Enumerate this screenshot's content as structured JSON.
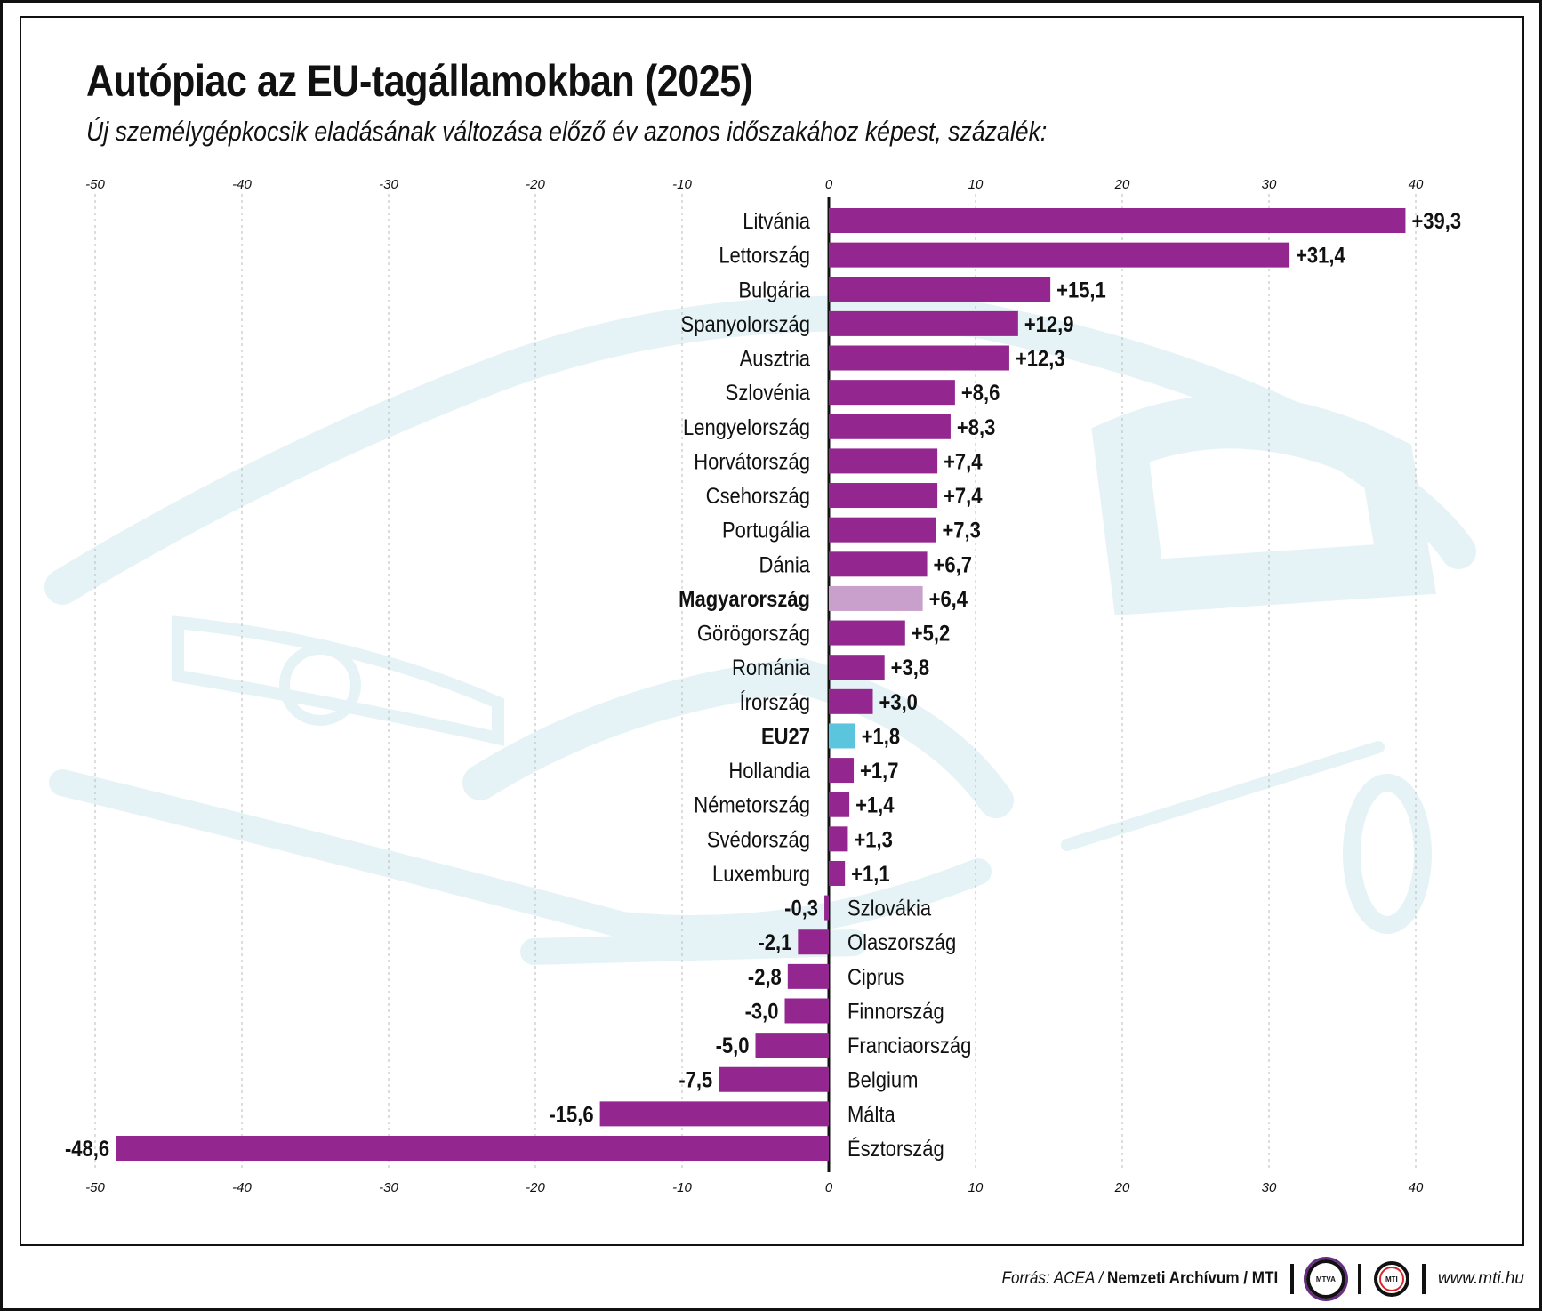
{
  "title": "Autópiac az EU-tagállamokban (2025)",
  "subtitle": "Új személygépkocsik eladásának változása előző év azonos időszakához képest, százalék:",
  "footer": {
    "source_prefix": "Forrás: ACEA / ",
    "source_bold": "Nemzeti Archívum / MTI",
    "logo_mtva": "MTVA",
    "logo_mti": "MTI",
    "url": "www.mti.hu"
  },
  "colors": {
    "bar": "#93278F",
    "hungary": "#C9A0CB",
    "eu27": "#5BC5DE",
    "background_car": "#E5F3F7"
  },
  "chart_data": {
    "type": "bar",
    "orientation": "horizontal",
    "title": "Autópiac az EU-tagállamokban (2025)",
    "xlim": [
      -50,
      40
    ],
    "xticks": [
      -50,
      -40,
      -30,
      -20,
      -10,
      0,
      10,
      20,
      30,
      40
    ],
    "grid": true,
    "categories": [
      "Litvánia",
      "Lettország",
      "Bulgária",
      "Spanyolország",
      "Ausztria",
      "Szlovénia",
      "Lengyelország",
      "Horvátország",
      "Csehország",
      "Portugália",
      "Dánia",
      "Magyarország",
      "Görögország",
      "Románia",
      "Írország",
      "EU27",
      "Hollandia",
      "Németország",
      "Svédország",
      "Luxemburg",
      "Szlovákia",
      "Olaszország",
      "Ciprus",
      "Finnország",
      "Franciaország",
      "Belgium",
      "Málta",
      "Észtország"
    ],
    "values": [
      39.3,
      31.4,
      15.1,
      12.9,
      12.3,
      8.6,
      8.3,
      7.4,
      7.4,
      7.3,
      6.7,
      6.4,
      5.2,
      3.8,
      3.0,
      1.8,
      1.7,
      1.4,
      1.3,
      1.1,
      -0.3,
      -2.1,
      -2.8,
      -3.0,
      -5.0,
      -7.5,
      -15.6,
      -48.6
    ],
    "highlighted": {
      "Magyarország": "hungary",
      "EU27": "eu27"
    }
  }
}
